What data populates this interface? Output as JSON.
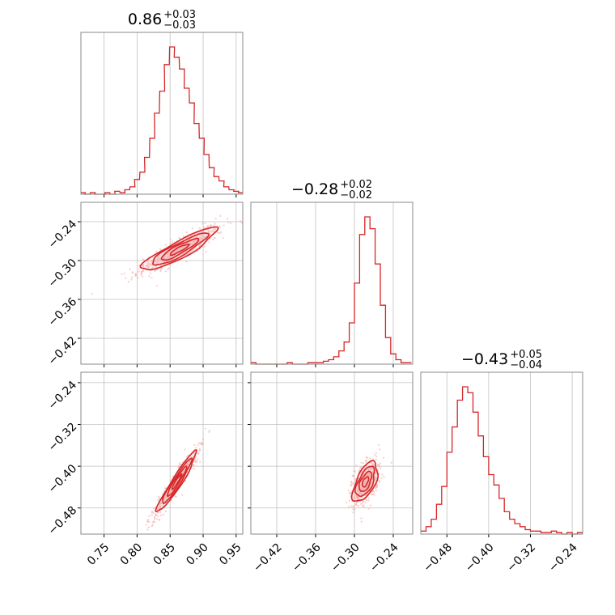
{
  "colors": {
    "series": "#d62728",
    "fill": "#f4b4b5",
    "scatter": "#f2a6a6",
    "grid": "#c0c0c0",
    "frame": "#888888"
  },
  "chart_data": {
    "type": "corner",
    "grid": true,
    "parameters": [
      {
        "title": {
          "value": "0.86",
          "plus": "+0.03",
          "minus": "−0.03"
        },
        "range": [
          0.715,
          0.96
        ],
        "ticks": [
          0.75,
          0.8,
          0.85,
          0.9,
          0.95
        ],
        "tick_labels": [
          "0.75",
          "0.80",
          "0.85",
          "0.90",
          "0.95"
        ],
        "histogram": {
          "x": [
            0.718,
            0.725,
            0.733,
            0.74,
            0.748,
            0.755,
            0.763,
            0.77,
            0.778,
            0.785,
            0.793,
            0.8,
            0.808,
            0.815,
            0.823,
            0.83,
            0.838,
            0.845,
            0.853,
            0.86,
            0.868,
            0.875,
            0.883,
            0.89,
            0.898,
            0.905,
            0.913,
            0.92,
            0.928,
            0.935,
            0.943,
            0.95,
            0.957
          ],
          "heights": [
            0.01,
            0,
            0.01,
            0,
            0,
            0.01,
            0,
            0.02,
            0.01,
            0.03,
            0.05,
            0.1,
            0.15,
            0.25,
            0.38,
            0.55,
            0.7,
            0.88,
            1.0,
            0.93,
            0.85,
            0.72,
            0.62,
            0.48,
            0.38,
            0.27,
            0.18,
            0.12,
            0.09,
            0.05,
            0.03,
            0.02,
            0.01
          ]
        }
      },
      {
        "title": {
          "value": "−0.28",
          "plus": "+0.02",
          "minus": "−0.02"
        },
        "range": [
          -0.46,
          -0.21
        ],
        "ticks": [
          -0.42,
          -0.36,
          -0.3,
          -0.24
        ],
        "tick_labels": [
          "−0.42",
          "−0.36",
          "−0.30",
          "−0.24"
        ],
        "histogram": {
          "x": [
            -0.456,
            -0.448,
            -0.44,
            -0.432,
            -0.424,
            -0.416,
            -0.408,
            -0.4,
            -0.392,
            -0.384,
            -0.376,
            -0.368,
            -0.36,
            -0.352,
            -0.344,
            -0.336,
            -0.328,
            -0.32,
            -0.312,
            -0.304,
            -0.296,
            -0.288,
            -0.28,
            -0.272,
            -0.264,
            -0.256,
            -0.248,
            -0.24,
            -0.232,
            -0.224,
            -0.216
          ],
          "heights": [
            0.01,
            0,
            0,
            0,
            0,
            0,
            0,
            0.01,
            0,
            0,
            0,
            0.01,
            0.01,
            0.01,
            0.02,
            0.03,
            0.05,
            0.09,
            0.15,
            0.28,
            0.55,
            0.88,
            1.0,
            0.92,
            0.68,
            0.4,
            0.18,
            0.07,
            0.03,
            0.01,
            0.01
          ]
        }
      },
      {
        "title": {
          "value": "−0.43",
          "plus": "+0.05",
          "minus": "−0.04"
        },
        "range": [
          -0.53,
          -0.22
        ],
        "ticks": [
          -0.48,
          -0.4,
          -0.32,
          -0.24
        ],
        "tick_labels": [
          "−0.48",
          "−0.40",
          "−0.32",
          "−0.24"
        ],
        "histogram": {
          "x": [
            -0.525,
            -0.515,
            -0.505,
            -0.495,
            -0.485,
            -0.475,
            -0.465,
            -0.455,
            -0.445,
            -0.435,
            -0.425,
            -0.415,
            -0.405,
            -0.395,
            -0.385,
            -0.375,
            -0.365,
            -0.355,
            -0.345,
            -0.335,
            -0.325,
            -0.315,
            -0.305,
            -0.295,
            -0.285,
            -0.275,
            -0.265,
            -0.255,
            -0.245,
            -0.235,
            -0.225
          ],
          "heights": [
            0.02,
            0.05,
            0.1,
            0.2,
            0.32,
            0.55,
            0.72,
            0.9,
            0.99,
            0.95,
            0.82,
            0.66,
            0.52,
            0.4,
            0.33,
            0.24,
            0.15,
            0.1,
            0.07,
            0.05,
            0.03,
            0.02,
            0.02,
            0.01,
            0.01,
            0.02,
            0.01,
            0,
            0.01,
            0,
            0.01
          ]
        }
      }
    ],
    "pairs": [
      {
        "x_param": 0,
        "y_param": 1,
        "center": [
          0.864,
          -0.283
        ],
        "slope": 0.55,
        "sigma_major": 0.032,
        "sigma_minor": 0.0065
      },
      {
        "x_param": 0,
        "y_param": 2,
        "center": [
          0.86,
          -0.43
        ],
        "slope": 2.0,
        "sigma_major": 0.032,
        "sigma_minor": 0.004
      },
      {
        "x_param": 1,
        "y_param": 2,
        "center": [
          -0.283,
          -0.43
        ],
        "slope": 2.9,
        "sigma_major": 0.02,
        "sigma_minor": 0.0075
      }
    ]
  }
}
